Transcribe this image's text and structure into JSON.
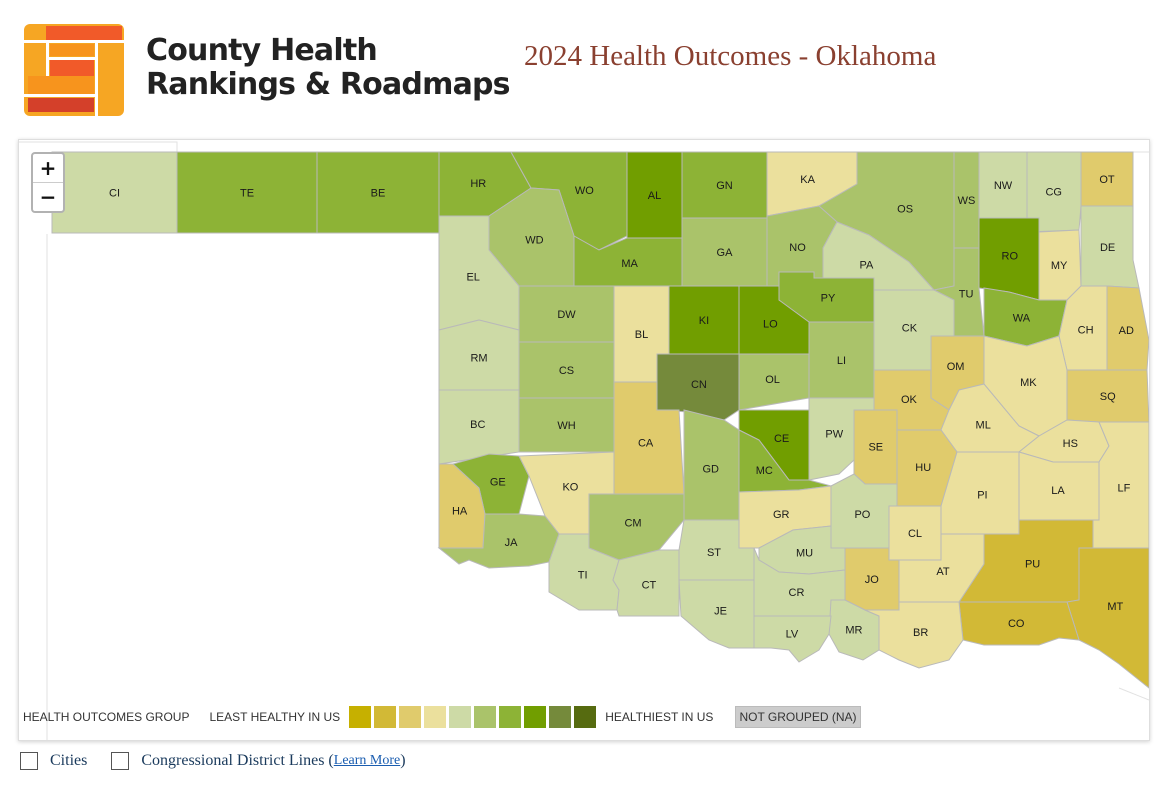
{
  "header": {
    "logo_alt": "County Health Rankings & Roadmaps",
    "logo_line1": "County Health",
    "logo_line2": "Rankings & Roadmaps",
    "page_title": "2024 Health Outcomes - Oklahoma"
  },
  "map": {
    "zoom_in": "+",
    "zoom_out": "−",
    "counties": [
      {
        "abbr": "CI",
        "group": 5
      },
      {
        "abbr": "TE",
        "group": 7
      },
      {
        "abbr": "BE",
        "group": 7
      },
      {
        "abbr": "HR",
        "group": 7
      },
      {
        "abbr": "WO",
        "group": 7
      },
      {
        "abbr": "AL",
        "group": 8
      },
      {
        "abbr": "GN",
        "group": 7
      },
      {
        "abbr": "KA",
        "group": 4
      },
      {
        "abbr": "OS",
        "group": 6
      },
      {
        "abbr": "WS",
        "group": 6
      },
      {
        "abbr": "NW",
        "group": 5
      },
      {
        "abbr": "CG",
        "group": 5
      },
      {
        "abbr": "OT",
        "group": 3
      },
      {
        "abbr": "WD",
        "group": 6
      },
      {
        "abbr": "MA",
        "group": 7
      },
      {
        "abbr": "GA",
        "group": 6
      },
      {
        "abbr": "NO",
        "group": 6
      },
      {
        "abbr": "PA",
        "group": 5
      },
      {
        "abbr": "RO",
        "group": 8
      },
      {
        "abbr": "MY",
        "group": 4
      },
      {
        "abbr": "DE",
        "group": 5
      },
      {
        "abbr": "EL",
        "group": 5
      },
      {
        "abbr": "DW",
        "group": 6
      },
      {
        "abbr": "BL",
        "group": 4
      },
      {
        "abbr": "KI",
        "group": 8
      },
      {
        "abbr": "LO",
        "group": 8
      },
      {
        "abbr": "PY",
        "group": 7
      },
      {
        "abbr": "TU",
        "group": 6
      },
      {
        "abbr": "CK",
        "group": 5
      },
      {
        "abbr": "WA",
        "group": 7
      },
      {
        "abbr": "CH",
        "group": 4
      },
      {
        "abbr": "AD",
        "group": 3
      },
      {
        "abbr": "RM",
        "group": 5
      },
      {
        "abbr": "CS",
        "group": 6
      },
      {
        "abbr": "CN",
        "group": 9
      },
      {
        "abbr": "OL",
        "group": 6
      },
      {
        "abbr": "LI",
        "group": 6
      },
      {
        "abbr": "OM",
        "group": 3
      },
      {
        "abbr": "MK",
        "group": 4
      },
      {
        "abbr": "SQ",
        "group": 3
      },
      {
        "abbr": "BC",
        "group": 5
      },
      {
        "abbr": "WH",
        "group": 6
      },
      {
        "abbr": "CA",
        "group": 3
      },
      {
        "abbr": "OK",
        "group": 3
      },
      {
        "abbr": "ML",
        "group": 4
      },
      {
        "abbr": "HS",
        "group": 4
      },
      {
        "abbr": "CE",
        "group": 8
      },
      {
        "abbr": "PW",
        "group": 5
      },
      {
        "abbr": "SE",
        "group": 3
      },
      {
        "abbr": "GD",
        "group": 6
      },
      {
        "abbr": "HU",
        "group": 3
      },
      {
        "abbr": "GE",
        "group": 7
      },
      {
        "abbr": "KO",
        "group": 4
      },
      {
        "abbr": "MC",
        "group": 7
      },
      {
        "abbr": "PI",
        "group": 4
      },
      {
        "abbr": "LA",
        "group": 4
      },
      {
        "abbr": "LF",
        "group": 4
      },
      {
        "abbr": "HA",
        "group": 3
      },
      {
        "abbr": "CM",
        "group": 6
      },
      {
        "abbr": "GR",
        "group": 4
      },
      {
        "abbr": "PO",
        "group": 5
      },
      {
        "abbr": "JA",
        "group": 6
      },
      {
        "abbr": "CL",
        "group": 4
      },
      {
        "abbr": "ST",
        "group": 5
      },
      {
        "abbr": "MU",
        "group": 5
      },
      {
        "abbr": "PU",
        "group": 2
      },
      {
        "abbr": "TI",
        "group": 5
      },
      {
        "abbr": "CT",
        "group": 5
      },
      {
        "abbr": "AT",
        "group": 4
      },
      {
        "abbr": "JO",
        "group": 3
      },
      {
        "abbr": "CR",
        "group": 5
      },
      {
        "abbr": "JE",
        "group": 5
      },
      {
        "abbr": "MT",
        "group": 2
      },
      {
        "abbr": "CO",
        "group": 2
      },
      {
        "abbr": "MR",
        "group": 5
      },
      {
        "abbr": "BR",
        "group": 4
      },
      {
        "abbr": "LV",
        "group": 5
      }
    ]
  },
  "legend": {
    "title": "HEALTH OUTCOMES GROUP",
    "least_label": "LEAST HEALTHY IN US",
    "most_label": "HEALTHIEST IN US",
    "na_label": "NOT GROUPED (NA)",
    "colors": [
      "#c6b000",
      "#d2b936",
      "#e0cb6c",
      "#ebe09d",
      "#cddaa6",
      "#aac36a",
      "#8db336",
      "#719e00",
      "#758a3b",
      "#566b10"
    ],
    "na_color": "#cccccc"
  },
  "controls": {
    "cities_label": "Cities",
    "districts_label": "Congressional District Lines (",
    "learn_more": "Learn More",
    "districts_close": ")"
  }
}
